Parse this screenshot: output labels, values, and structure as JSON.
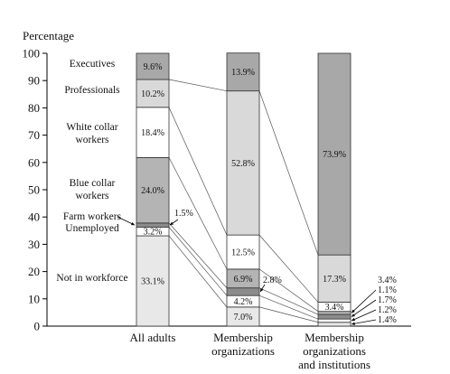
{
  "chart_data": {
    "type": "bar",
    "stacked": true,
    "ylabel": "Percentage",
    "ylim": [
      0,
      100
    ],
    "yticks": [
      0,
      10,
      20,
      30,
      40,
      50,
      60,
      70,
      80,
      90,
      100
    ],
    "grid": false,
    "categories": [
      "All adults",
      "Membership\norganizations",
      "Membership\norganizations\nand institutions"
    ],
    "series": [
      {
        "name": "Not in workforce",
        "values": [
          33.1,
          7.0,
          1.4
        ],
        "color": "#e8e8e8"
      },
      {
        "name": "Unemployed",
        "values": [
          3.2,
          4.2,
          1.2
        ],
        "color": "#ffffff"
      },
      {
        "name": "Farm workers",
        "values": [
          1.5,
          2.8,
          1.7
        ],
        "color": "#8c8c8c"
      },
      {
        "name": "Blue collar\nworkers",
        "values": [
          24.0,
          6.9,
          1.1
        ],
        "color": "#b4b4b4"
      },
      {
        "name": "White collar\nworkers",
        "values": [
          18.4,
          12.5,
          3.4
        ],
        "color": "#ffffff"
      },
      {
        "name": "Professionals",
        "values": [
          10.2,
          52.8,
          17.3
        ],
        "color": "#d9d9d9"
      },
      {
        "name": "Executives",
        "values": [
          9.6,
          13.9,
          73.9
        ],
        "color": "#a8a8a8"
      }
    ],
    "data_labels": [
      [
        "33.1%",
        "7.0%",
        "1.4%"
      ],
      [
        "3.2%",
        "4.2%",
        "1.2%"
      ],
      [
        "1.5%",
        "2.8%",
        "1.7%"
      ],
      [
        "24.0%",
        "6.9%",
        "1.1%"
      ],
      [
        "18.4%",
        "12.5%",
        "3.4%"
      ],
      [
        "10.2%",
        "52.8%",
        "17.3%"
      ],
      [
        "9.6%",
        "13.9%",
        "73.9%"
      ]
    ]
  }
}
